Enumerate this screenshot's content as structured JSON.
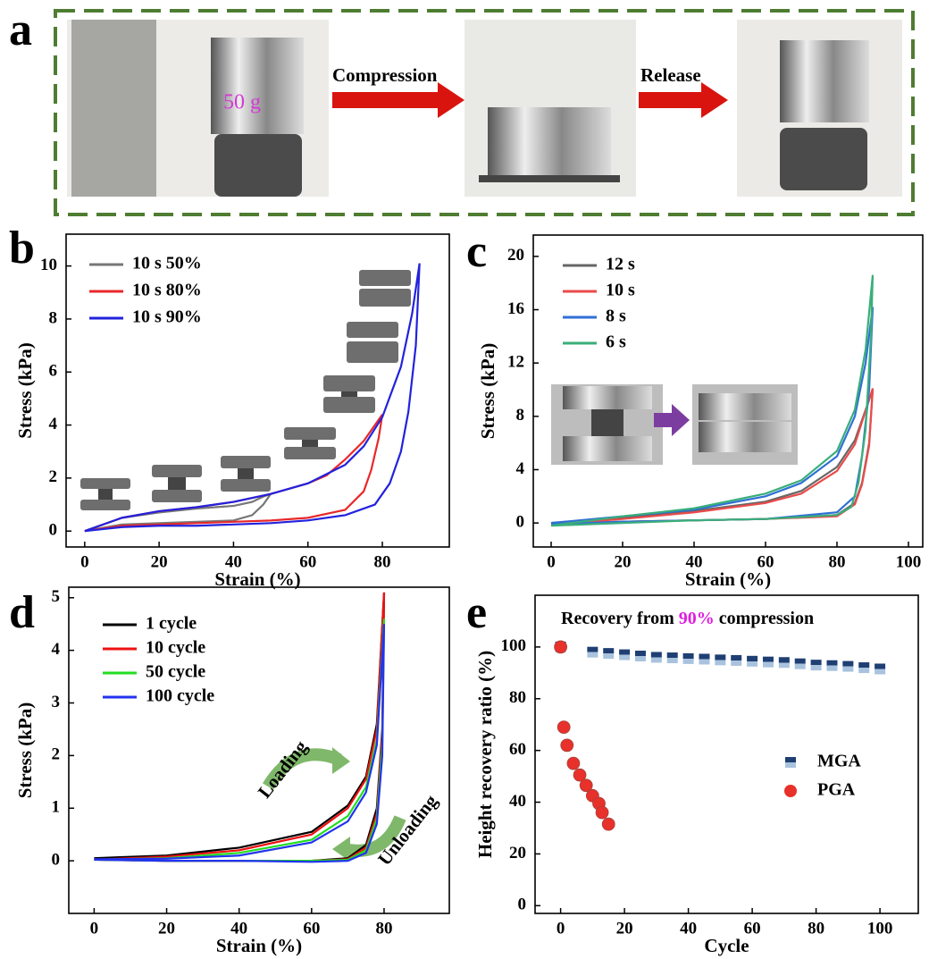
{
  "panel_a": {
    "label": "a",
    "weight_label": "50 g",
    "arrows": [
      "Compression",
      "Release"
    ]
  },
  "chart_data": [
    {
      "type": "line",
      "panel_label": "b",
      "xlabel": "Strain (%)",
      "ylabel": "Stress (kPa)",
      "xlim": [
        -5,
        98
      ],
      "ylim": [
        -0.6,
        11.2
      ],
      "xticks": [
        0,
        20,
        40,
        60,
        80
      ],
      "yticks": [
        0,
        2,
        4,
        6,
        8,
        10
      ],
      "legend": "upper left",
      "series": [
        {
          "name": "10 s 50%",
          "color": "#777777",
          "x": [
            0,
            10,
            20,
            30,
            40,
            45,
            48,
            50,
            48,
            45,
            40,
            30,
            20,
            10,
            0
          ],
          "values": [
            0,
            0.5,
            0.7,
            0.85,
            0.95,
            1.1,
            1.3,
            1.4,
            1.0,
            0.6,
            0.4,
            0.35,
            0.3,
            0.25,
            0
          ]
        },
        {
          "name": "10 s 80%",
          "color": "#e8282a",
          "x": [
            0,
            10,
            20,
            30,
            40,
            50,
            60,
            65,
            70,
            75,
            80,
            79,
            77,
            75,
            70,
            60,
            50,
            40,
            30,
            20,
            10,
            0
          ],
          "values": [
            0,
            0.5,
            0.75,
            0.9,
            1.1,
            1.4,
            1.8,
            2.1,
            2.7,
            3.4,
            4.4,
            3.5,
            2.3,
            1.5,
            0.8,
            0.5,
            0.4,
            0.35,
            0.3,
            0.25,
            0.2,
            0
          ]
        },
        {
          "name": "10 s 90%",
          "color": "#2222dd",
          "x": [
            0,
            10,
            20,
            30,
            40,
            50,
            60,
            70,
            75,
            80,
            85,
            88,
            90,
            89,
            87,
            85,
            82,
            78,
            70,
            60,
            50,
            40,
            30,
            20,
            10,
            0
          ],
          "values": [
            0,
            0.5,
            0.75,
            0.9,
            1.1,
            1.4,
            1.8,
            2.5,
            3.2,
            4.3,
            6.2,
            8.2,
            10.1,
            7,
            4.5,
            3,
            1.8,
            1.0,
            0.6,
            0.4,
            0.3,
            0.25,
            0.2,
            0.2,
            0.15,
            0
          ]
        }
      ]
    },
    {
      "type": "line",
      "panel_label": "c",
      "xlabel": "Strain (%)",
      "ylabel": "Stress (kPa)",
      "xlim": [
        -5,
        104
      ],
      "ylim": [
        -1.8,
        21.6
      ],
      "xticks": [
        0,
        20,
        40,
        60,
        80,
        100
      ],
      "yticks": [
        0,
        4,
        8,
        12,
        16,
        20
      ],
      "legend": "upper left",
      "series": [
        {
          "name": "12 s",
          "color": "#666666",
          "x": [
            0,
            20,
            40,
            60,
            70,
            80,
            85,
            90,
            89,
            87,
            85,
            80,
            60,
            40,
            20,
            0
          ],
          "values": [
            0,
            0.4,
            0.9,
            1.6,
            2.4,
            4.2,
            6.2,
            10,
            6,
            3,
            1.5,
            0.6,
            0.3,
            0.2,
            0.1,
            0
          ]
        },
        {
          "name": "10 s",
          "color": "#ea4b4b",
          "x": [
            0,
            20,
            40,
            60,
            70,
            80,
            85,
            90,
            89,
            87,
            85,
            80,
            60,
            40,
            20,
            0
          ],
          "values": [
            -0.1,
            0.3,
            0.8,
            1.5,
            2.2,
            3.9,
            5.9,
            10.1,
            5.8,
            2.9,
            1.4,
            0.5,
            0.3,
            0.2,
            0.1,
            -0.1
          ]
        },
        {
          "name": "8 s",
          "color": "#2f6fd6",
          "x": [
            0,
            20,
            40,
            60,
            70,
            80,
            85,
            88,
            90,
            89,
            87,
            85,
            80,
            60,
            40,
            20,
            0
          ],
          "values": [
            0,
            0.5,
            1,
            2,
            3,
            5,
            8,
            12,
            16.2,
            10,
            5,
            2,
            0.8,
            0.3,
            0.2,
            0.1,
            -0.1
          ]
        },
        {
          "name": "6 s",
          "color": "#3aae7a",
          "x": [
            0,
            20,
            40,
            60,
            70,
            80,
            85,
            88,
            90,
            89.5,
            88,
            86,
            84,
            80,
            60,
            40,
            20,
            0
          ],
          "values": [
            -0.2,
            0.5,
            1.1,
            2.2,
            3.2,
            5.4,
            8.5,
            13,
            18.6,
            14,
            7,
            3,
            1.2,
            0.6,
            0.3,
            0.2,
            0,
            -0.2
          ]
        }
      ]
    },
    {
      "type": "line",
      "panel_label": "d",
      "xlabel": "Strain (%)",
      "ylabel": "Stress (kPa)",
      "xlim": [
        -7,
        98
      ],
      "ylim": [
        -1,
        5.2
      ],
      "xticks": [
        0,
        20,
        40,
        60,
        80
      ],
      "yticks": [
        0,
        1,
        2,
        3,
        4,
        5
      ],
      "legend": "upper left",
      "annotations": [
        "Loading",
        "Unloading"
      ],
      "series": [
        {
          "name": "1 cycle",
          "color": "#000000",
          "x": [
            0,
            20,
            40,
            60,
            70,
            75,
            78,
            80,
            79.5,
            78,
            75,
            70,
            60,
            40,
            20,
            0
          ],
          "values": [
            0.05,
            0.1,
            0.25,
            0.55,
            1.05,
            1.6,
            2.6,
            5.1,
            2.5,
            1.0,
            0.3,
            0.05,
            0,
            0,
            0,
            0.03
          ]
        },
        {
          "name": "10 cycle",
          "color": "#ee1111",
          "x": [
            0,
            20,
            40,
            60,
            70,
            75,
            78,
            80,
            79.5,
            78,
            75,
            70,
            60,
            40,
            20,
            0
          ],
          "values": [
            0.02,
            0.08,
            0.2,
            0.5,
            1,
            1.55,
            2.5,
            5.1,
            2.4,
            0.9,
            0.25,
            0.03,
            0,
            0,
            0,
            0.02
          ]
        },
        {
          "name": "50 cycle",
          "color": "#22dd22",
          "x": [
            0,
            20,
            40,
            60,
            70,
            75,
            78,
            80,
            79.5,
            78,
            75,
            70,
            60,
            40,
            20,
            0
          ],
          "values": [
            0.02,
            0.05,
            0.15,
            0.4,
            0.85,
            1.4,
            2.3,
            4.6,
            2.2,
            0.8,
            0.2,
            0.02,
            0,
            0,
            0,
            0.02
          ]
        },
        {
          "name": "100 cycle",
          "color": "#2233ee",
          "x": [
            0,
            20,
            40,
            60,
            70,
            75,
            78,
            80,
            79.5,
            78,
            75,
            70,
            60,
            40,
            20,
            0
          ],
          "values": [
            0.03,
            0.04,
            0.1,
            0.35,
            0.75,
            1.3,
            2.2,
            4.5,
            2.0,
            0.7,
            0.15,
            0,
            -0.02,
            0,
            0,
            0.02
          ]
        }
      ]
    },
    {
      "type": "scatter",
      "panel_label": "e",
      "title_parts": [
        "Recovery from ",
        "90%",
        " compression"
      ],
      "xlabel": "Cycle",
      "ylabel": "Height recovery ratio (%)",
      "xlim": [
        -8,
        112
      ],
      "ylim": [
        -3,
        120
      ],
      "xticks": [
        0,
        20,
        40,
        60,
        80,
        100
      ],
      "yticks": [
        0,
        20,
        40,
        60,
        80,
        100
      ],
      "legend": "center right",
      "series": [
        {
          "name": "MGA",
          "color": "#1f3f73",
          "x": [
            0,
            10,
            15,
            20,
            25,
            30,
            35,
            40,
            45,
            50,
            55,
            60,
            65,
            70,
            75,
            80,
            85,
            90,
            95,
            100
          ],
          "values": [
            100,
            98,
            97.5,
            97,
            96.5,
            96,
            95.8,
            95.5,
            95.3,
            95,
            94.8,
            94.5,
            94.2,
            94,
            93.5,
            93,
            92.8,
            92.5,
            92,
            91.5
          ]
        },
        {
          "name": "PGA",
          "color": "#e8312a",
          "x": [
            0,
            1,
            2,
            4,
            6,
            8,
            10,
            12,
            13,
            15
          ],
          "values": [
            100,
            69,
            62,
            55,
            50.5,
            46.5,
            42.5,
            39.5,
            36,
            31.5
          ]
        }
      ]
    }
  ]
}
